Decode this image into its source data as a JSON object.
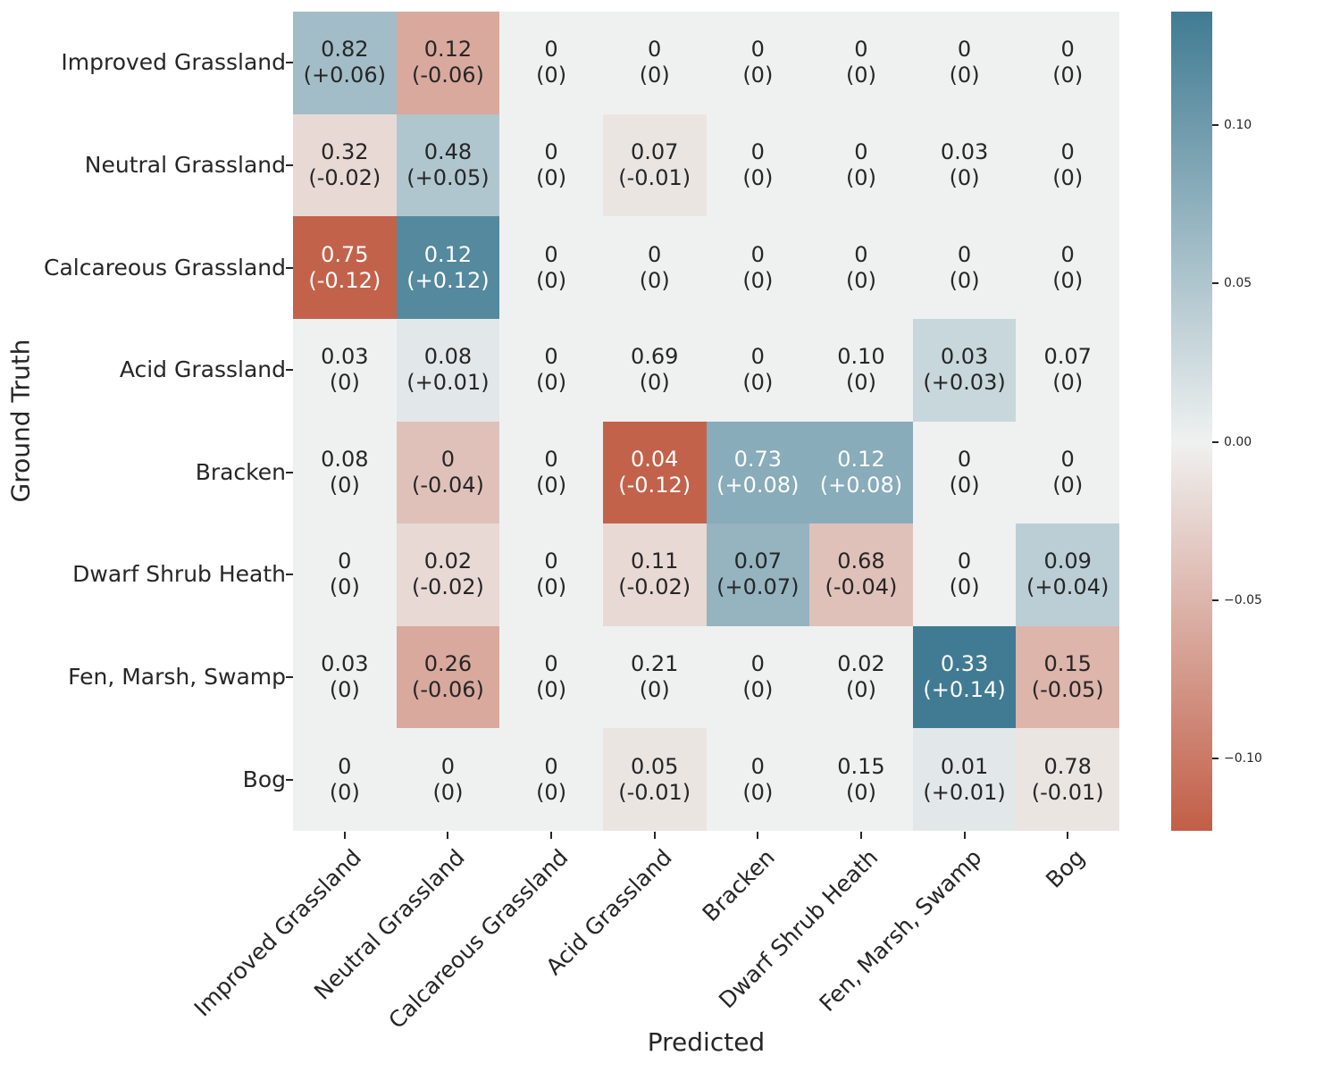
{
  "chart_data": {
    "type": "heatmap",
    "title": "",
    "xlabel": "Predicted",
    "ylabel": "Ground Truth",
    "x_categories": [
      "Improved Grassland",
      "Neutral Grassland",
      "Calcareous Grassland",
      "Acid Grassland",
      "Bracken",
      "Dwarf Shrub Heath",
      "Fen, Marsh, Swamp",
      "Bog"
    ],
    "y_categories": [
      "Improved Grassland",
      "Neutral Grassland",
      "Calcareous Grassland",
      "Acid Grassland",
      "Bracken",
      "Dwarf Shrub Heath",
      "Fen, Marsh, Swamp",
      "Bog"
    ],
    "annotation_format": "value newline (delta)",
    "values": [
      [
        0.82,
        0.12,
        0,
        0,
        0,
        0,
        0,
        0
      ],
      [
        0.32,
        0.48,
        0,
        0.07,
        0,
        0,
        0.03,
        0
      ],
      [
        0.75,
        0.12,
        0,
        0,
        0,
        0,
        0,
        0
      ],
      [
        0.03,
        0.08,
        0,
        0.69,
        0,
        0.1,
        0.03,
        0.07
      ],
      [
        0.08,
        0,
        0,
        0.04,
        0.73,
        0.12,
        0,
        0
      ],
      [
        0,
        0.02,
        0,
        0.11,
        0.07,
        0.68,
        0,
        0.09
      ],
      [
        0.03,
        0.26,
        0,
        0.21,
        0,
        0.02,
        0.33,
        0.15
      ],
      [
        0,
        0,
        0,
        0.05,
        0,
        0.15,
        0.01,
        0.78
      ]
    ],
    "deltas": [
      [
        0.06,
        -0.06,
        0,
        0,
        0,
        0,
        0,
        0
      ],
      [
        -0.02,
        0.05,
        0,
        -0.01,
        0,
        0,
        0,
        0
      ],
      [
        -0.12,
        0.12,
        0,
        0,
        0,
        0,
        0,
        0
      ],
      [
        0,
        0.01,
        0,
        0,
        0,
        0,
        0.03,
        0
      ],
      [
        0,
        -0.04,
        0,
        -0.12,
        0.08,
        0.08,
        0,
        0
      ],
      [
        0,
        -0.02,
        0,
        -0.02,
        0.07,
        -0.04,
        0,
        0.04
      ],
      [
        0,
        -0.06,
        0,
        0,
        0,
        0,
        0.14,
        -0.05
      ],
      [
        0,
        0,
        0,
        -0.01,
        0,
        0,
        0.01,
        -0.01
      ]
    ],
    "colorbar": {
      "tick_values": [
        0.1,
        0.05,
        0.0,
        -0.05,
        -0.1
      ],
      "tick_labels": [
        "0.10",
        "0.05",
        "0.00",
        "−0.05",
        "−0.10"
      ],
      "vmax": 0.136,
      "vmin": -0.123,
      "color_positive_max": "#407b93",
      "color_zero": "#eff1f0",
      "color_negative_max": "#c25e47",
      "legend_position": "right"
    },
    "grid": false,
    "text_color_dark": "#262626",
    "text_color_light": "#ffffff",
    "white_text_abs_delta_threshold": 0.08
  }
}
